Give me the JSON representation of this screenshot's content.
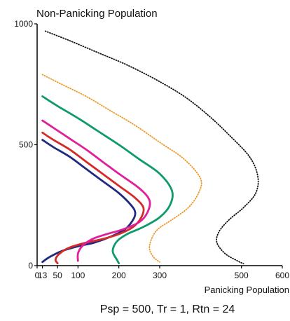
{
  "chart_data": {
    "type": "line",
    "title": "Non-Panicking Population",
    "xlabel": "Panicking Population",
    "ylabel": "Non-Panicking Population",
    "caption": "Psp = 500, Tr = 1, Rtn = 24",
    "xlim": [
      0,
      600
    ],
    "ylim": [
      0,
      1000
    ],
    "x_ticks": [
      0,
      13,
      50,
      100,
      200,
      300,
      500,
      600
    ],
    "x_tick_labels": [
      "0",
      "13",
      "50",
      "100",
      "200",
      "300",
      "500",
      "600"
    ],
    "y_ticks": [
      0,
      500,
      1000
    ],
    "y_tick_labels": [
      "0",
      "500",
      "1000"
    ],
    "grid": false,
    "legend": "none",
    "series": [
      {
        "color": "#1f2a80",
        "style": "solid",
        "x": [
          13,
          40,
          80,
          120,
          160,
          200,
          230,
          240,
          235,
          215,
          180,
          140,
          100,
          60,
          30,
          13
        ],
        "y": [
          520,
          490,
          450,
          400,
          350,
          300,
          250,
          220,
          190,
          150,
          120,
          95,
          80,
          60,
          35,
          15
        ]
      },
      {
        "color": "#d42a2a",
        "style": "solid",
        "x": [
          13,
          40,
          80,
          120,
          160,
          200,
          240,
          260,
          255,
          235,
          200,
          160,
          120,
          80,
          55,
          45,
          50
        ],
        "y": [
          550,
          520,
          480,
          430,
          380,
          330,
          280,
          240,
          200,
          160,
          130,
          110,
          95,
          75,
          50,
          25,
          10
        ]
      },
      {
        "color": "#e0209a",
        "style": "solid",
        "x": [
          13,
          40,
          80,
          120,
          160,
          200,
          250,
          275,
          270,
          250,
          210,
          170,
          135,
          110,
          100,
          100
        ],
        "y": [
          600,
          570,
          525,
          480,
          430,
          380,
          320,
          270,
          220,
          180,
          150,
          130,
          110,
          80,
          50,
          20
        ]
      },
      {
        "color": "#0d9b6b",
        "style": "solid",
        "x": [
          13,
          50,
          100,
          150,
          200,
          250,
          300,
          330,
          325,
          300,
          260,
          220,
          195,
          185,
          195,
          200
        ],
        "y": [
          700,
          660,
          610,
          555,
          500,
          440,
          380,
          310,
          250,
          200,
          160,
          130,
          100,
          60,
          25,
          10
        ]
      },
      {
        "color": "#eb9a28",
        "style": "dotted",
        "x": [
          13,
          60,
          120,
          180,
          240,
          300,
          360,
          400,
          395,
          370,
          330,
          295,
          280,
          275,
          285,
          300
        ],
        "y": [
          790,
          750,
          700,
          640,
          580,
          510,
          440,
          360,
          300,
          240,
          190,
          150,
          110,
          70,
          35,
          15
        ]
      },
      {
        "color": "#111111",
        "style": "dotted",
        "x": [
          20,
          80,
          150,
          220,
          290,
          360,
          420,
          470,
          520,
          540,
          535,
          505,
          470,
          445,
          440,
          460,
          490,
          505
        ],
        "y": [
          970,
          930,
          880,
          830,
          770,
          700,
          620,
          540,
          450,
          370,
          300,
          240,
          190,
          140,
          95,
          50,
          20,
          8
        ]
      }
    ]
  }
}
